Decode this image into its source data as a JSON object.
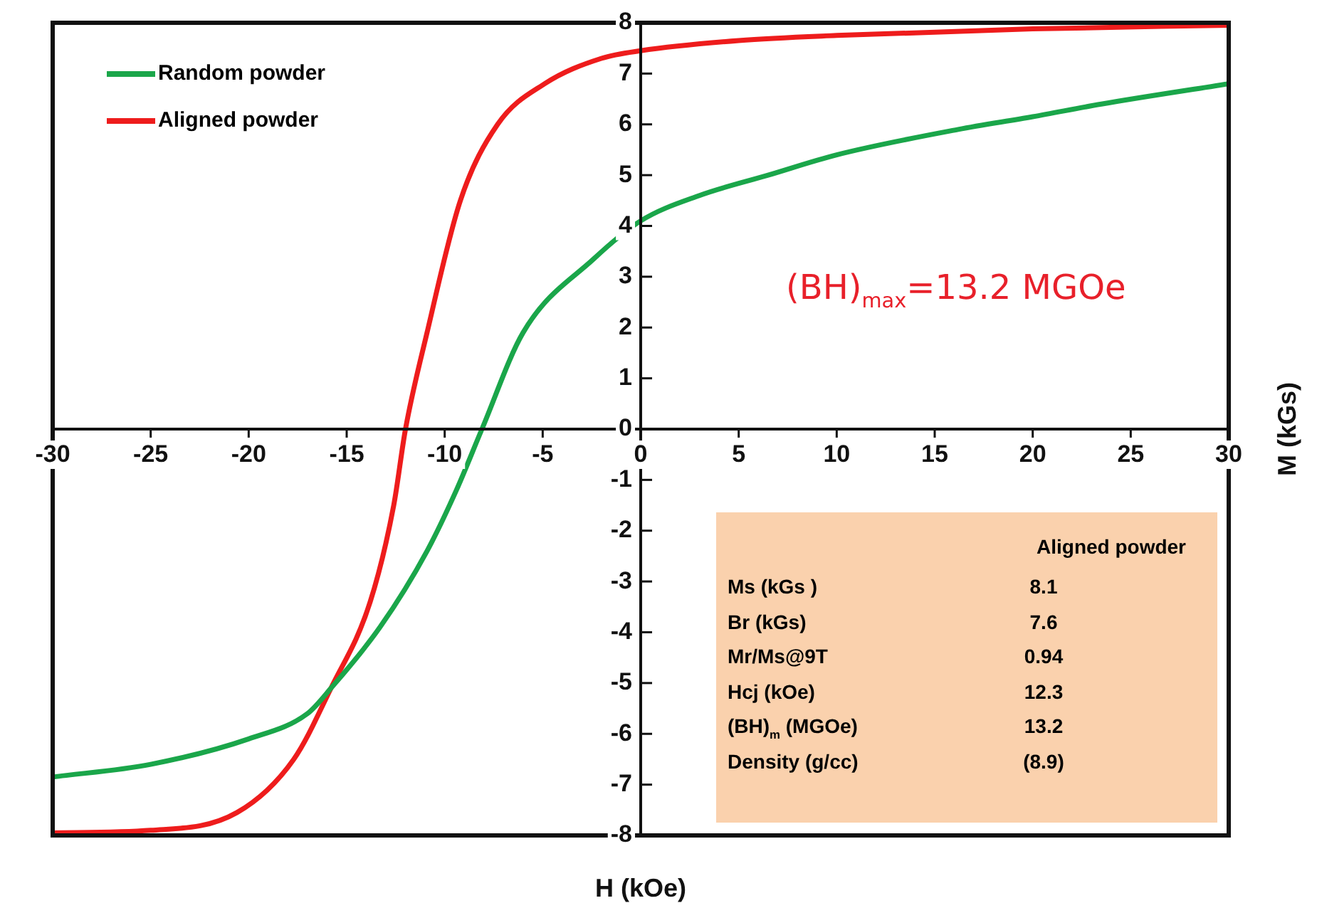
{
  "chart_data": {
    "type": "line",
    "xlabel": "H (kOe)",
    "ylabel": "M (kGs)",
    "xlim": [
      -30,
      30
    ],
    "ylim": [
      -8,
      8
    ],
    "xticks": [
      -30,
      -25,
      -20,
      -15,
      -10,
      -5,
      0,
      5,
      10,
      15,
      20,
      25,
      30
    ],
    "yticks": [
      -8,
      -7,
      -6,
      -5,
      -4,
      -3,
      -2,
      -1,
      0,
      1,
      2,
      3,
      4,
      5,
      6,
      7,
      8
    ],
    "legend": "top left",
    "marker": "none",
    "series": [
      {
        "name": "Random powder",
        "color": "#1aa64a",
        "x": [
          -30,
          -25,
          -20,
          -17,
          -15.8,
          -13.3,
          -10.9,
          -9.4,
          -8.1,
          -6,
          -2.4,
          0,
          3,
          6.5,
          10,
          16.2,
          20,
          23.5,
          30
        ],
        "values": [
          -6.85,
          -6.6,
          -6.1,
          -5.6,
          -5.1,
          -3.9,
          -2.4,
          -1.2,
          0,
          1.9,
          3.35,
          4.1,
          4.6,
          5.0,
          5.4,
          5.9,
          6.15,
          6.4,
          6.8
        ]
      },
      {
        "name": "Aligned powder",
        "color": "#ee1c1c",
        "x": [
          -30,
          -25,
          -20.6,
          -17.7,
          -15.8,
          -13.8,
          -12.6,
          -12,
          -10.9,
          -9.2,
          -7.3,
          -4.9,
          -2,
          0,
          5,
          10,
          20,
          30
        ],
        "values": [
          -7.95,
          -7.9,
          -7.55,
          -6.5,
          -5.1,
          -3.4,
          -1.5,
          0,
          1.9,
          4.5,
          6.0,
          6.8,
          7.3,
          7.45,
          7.65,
          7.75,
          7.88,
          7.95
        ]
      }
    ],
    "annotations": [
      "(BH)$_{max}$=13.2 MGOe",
      "Aligned powder",
      "Ms (kGs )",
      "8.1",
      "Br (kGs)",
      "7.6",
      "Mr/Ms@9T",
      "0.94",
      "Hcj (kOe)",
      "12.3",
      "(BH)$_{m}$  (MGOe)",
      "13.2",
      "Density (g/cc)",
      "(8.9)"
    ]
  }
}
